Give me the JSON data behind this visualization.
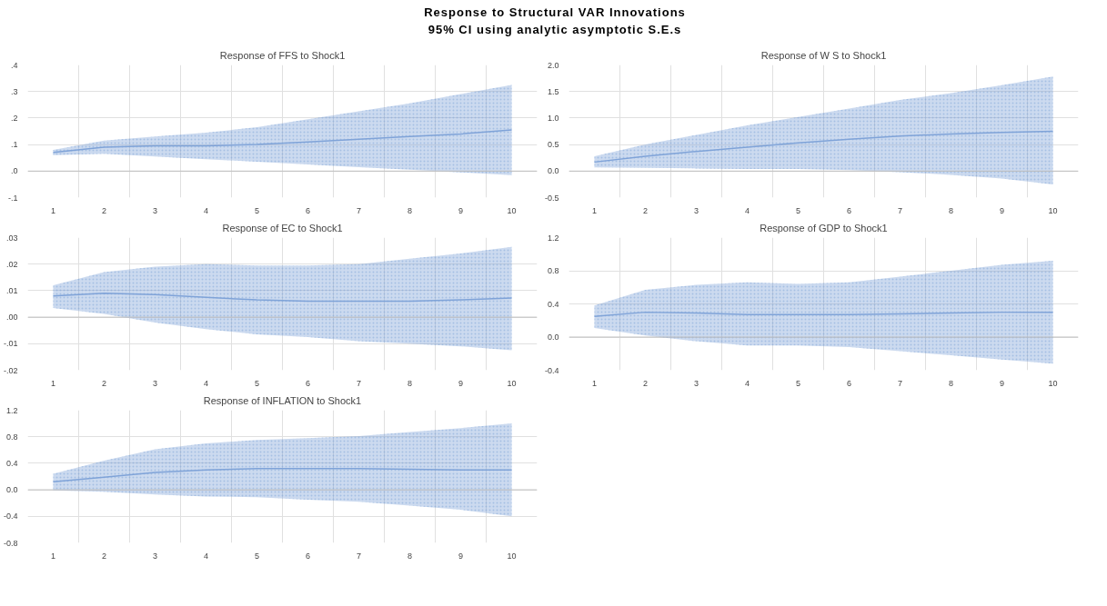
{
  "chart_data": [
    {
      "type": "line",
      "title": "Response of FFS to Shock1",
      "annotations": [
        "Response to Structural VAR Innovations",
        "95% CI using analytic asymptotic S.E.s"
      ],
      "categories": [
        "1",
        "2",
        "3",
        "4",
        "5",
        "6",
        "7",
        "8",
        "9",
        "10"
      ],
      "series": [
        {
          "color": "#7fa3d8",
          "values": [
            0.07,
            0.09,
            0.095,
            0.095,
            0.1,
            0.11,
            0.12,
            0.13,
            0.14,
            0.155
          ],
          "lower": [
            0.06,
            0.065,
            0.055,
            0.045,
            0.035,
            0.025,
            0.015,
            0.005,
            -0.005,
            -0.015
          ],
          "upper": [
            0.08,
            0.115,
            0.13,
            0.145,
            0.165,
            0.195,
            0.225,
            0.255,
            0.29,
            0.325
          ]
        }
      ],
      "ylim": [
        -0.1,
        0.4
      ],
      "yticks": [
        {
          "value": -0.1,
          "label": "-.1"
        },
        {
          "value": 0,
          "label": ".0"
        },
        {
          "value": 0.1,
          "label": ".1"
        },
        {
          "value": 0.2,
          "label": ".2"
        },
        {
          "value": 0.3,
          "label": ".3"
        },
        {
          "value": 0.4,
          "label": ".4"
        }
      ],
      "grid": true
    },
    {
      "type": "line",
      "title": "Response of W S to Shock1",
      "categories": [
        "1",
        "2",
        "3",
        "4",
        "5",
        "6",
        "7",
        "8",
        "9",
        "10"
      ],
      "series": [
        {
          "color": "#7fa3d8",
          "values": [
            0.17,
            0.28,
            0.37,
            0.45,
            0.53,
            0.6,
            0.66,
            0.7,
            0.73,
            0.75
          ],
          "lower": [
            0.07,
            0.06,
            0.05,
            0.04,
            0.04,
            0.02,
            -0.02,
            -0.07,
            -0.14,
            -0.25
          ],
          "upper": [
            0.28,
            0.5,
            0.68,
            0.86,
            1.02,
            1.18,
            1.34,
            1.47,
            1.62,
            1.78
          ]
        }
      ],
      "ylim": [
        -0.5,
        2.0
      ],
      "yticks": [
        {
          "value": -0.5,
          "label": "-0.5"
        },
        {
          "value": 0,
          "label": "0.0"
        },
        {
          "value": 0.5,
          "label": "0.5"
        },
        {
          "value": 1.0,
          "label": "1.0"
        },
        {
          "value": 1.5,
          "label": "1.5"
        },
        {
          "value": 2.0,
          "label": "2.0"
        }
      ],
      "grid": true
    },
    {
      "type": "line",
      "title": "Response of EC to Shock1",
      "categories": [
        "1",
        "2",
        "3",
        "4",
        "5",
        "6",
        "7",
        "8",
        "9",
        "10"
      ],
      "series": [
        {
          "color": "#7fa3d8",
          "values": [
            0.008,
            0.009,
            0.0085,
            0.0075,
            0.0065,
            0.006,
            0.006,
            0.006,
            0.0065,
            0.0072
          ],
          "lower": [
            0.0035,
            0.0012,
            -0.002,
            -0.0045,
            -0.0065,
            -0.0075,
            -0.009,
            -0.01,
            -0.011,
            -0.0125
          ],
          "upper": [
            0.012,
            0.017,
            0.019,
            0.02,
            0.0195,
            0.0195,
            0.02,
            0.022,
            0.024,
            0.0265
          ]
        }
      ],
      "ylim": [
        -0.02,
        0.03
      ],
      "yticks": [
        {
          "value": -0.02,
          "label": "-.02"
        },
        {
          "value": -0.01,
          "label": "-.01"
        },
        {
          "value": 0,
          "label": ".00"
        },
        {
          "value": 0.01,
          "label": ".01"
        },
        {
          "value": 0.02,
          "label": ".02"
        },
        {
          "value": 0.03,
          "label": ".03"
        }
      ],
      "grid": true
    },
    {
      "type": "line",
      "title": "Response of GDP to Shock1",
      "categories": [
        "1",
        "2",
        "3",
        "4",
        "5",
        "6",
        "7",
        "8",
        "9",
        "10"
      ],
      "series": [
        {
          "color": "#7fa3d8",
          "values": [
            0.25,
            0.3,
            0.29,
            0.27,
            0.27,
            0.27,
            0.28,
            0.29,
            0.3,
            0.3
          ],
          "lower": [
            0.11,
            0.02,
            -0.05,
            -0.1,
            -0.1,
            -0.12,
            -0.17,
            -0.22,
            -0.27,
            -0.32
          ],
          "upper": [
            0.38,
            0.57,
            0.63,
            0.66,
            0.64,
            0.66,
            0.73,
            0.8,
            0.87,
            0.92
          ]
        }
      ],
      "ylim": [
        -0.4,
        1.2
      ],
      "yticks": [
        {
          "value": -0.4,
          "label": "-0.4"
        },
        {
          "value": 0,
          "label": "0.0"
        },
        {
          "value": 0.4,
          "label": "0.4"
        },
        {
          "value": 0.8,
          "label": "0.8"
        },
        {
          "value": 1.2,
          "label": "1.2"
        }
      ],
      "grid": true
    },
    {
      "type": "line",
      "title": "Response of INFLATION to Shock1",
      "categories": [
        "1",
        "2",
        "3",
        "4",
        "5",
        "6",
        "7",
        "8",
        "9",
        "10"
      ],
      "series": [
        {
          "color": "#7fa3d8",
          "values": [
            0.12,
            0.19,
            0.26,
            0.3,
            0.32,
            0.32,
            0.32,
            0.31,
            0.3,
            0.3
          ],
          "lower": [
            -0.01,
            -0.03,
            -0.07,
            -0.1,
            -0.11,
            -0.15,
            -0.18,
            -0.24,
            -0.3,
            -0.4
          ],
          "upper": [
            0.24,
            0.44,
            0.61,
            0.7,
            0.75,
            0.78,
            0.81,
            0.87,
            0.93,
            1.0
          ]
        }
      ],
      "ylim": [
        -0.8,
        1.2
      ],
      "yticks": [
        {
          "value": -0.8,
          "label": "-0.8"
        },
        {
          "value": -0.4,
          "label": "-0.4"
        },
        {
          "value": 0,
          "label": "0.0"
        },
        {
          "value": 0.4,
          "label": "0.4"
        },
        {
          "value": 0.8,
          "label": "0.8"
        },
        {
          "value": 1.2,
          "label": "1.2"
        }
      ],
      "grid": true
    }
  ]
}
